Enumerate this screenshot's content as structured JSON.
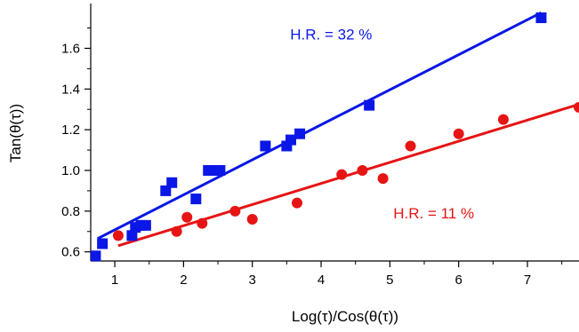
{
  "chart_data": {
    "type": "scatter",
    "title": "",
    "xlabel": "Log(τ)/Cos(θ(τ))",
    "ylabel": "Tan(θ(τ))",
    "xlim": [
      0.65,
      7.75
    ],
    "ylim": [
      0.555,
      1.82
    ],
    "x_ticks": [
      1,
      2,
      3,
      4,
      5,
      6,
      7
    ],
    "y_ticks": [
      0.6,
      0.8,
      1.0,
      1.2,
      1.4,
      1.6
    ],
    "y_tick_labels": [
      "0.6",
      "0.8",
      "1.0",
      "1.2",
      "1.4",
      "1.6"
    ],
    "grid": false,
    "series": [
      {
        "color": "#0a17e6",
        "marker": "square",
        "points": [
          [
            0.72,
            0.58
          ],
          [
            0.82,
            0.64
          ],
          [
            1.25,
            0.68
          ],
          [
            1.3,
            0.72
          ],
          [
            1.38,
            0.73
          ],
          [
            1.45,
            0.73
          ],
          [
            1.74,
            0.9
          ],
          [
            1.83,
            0.94
          ],
          [
            2.18,
            0.86
          ],
          [
            2.36,
            1.0
          ],
          [
            2.45,
            1.0
          ],
          [
            2.53,
            1.0
          ],
          [
            3.19,
            1.12
          ],
          [
            3.5,
            1.12
          ],
          [
            3.56,
            1.15
          ],
          [
            3.69,
            1.18
          ],
          [
            4.7,
            1.32
          ],
          [
            7.2,
            1.75
          ]
        ],
        "fit": [
          [
            0.75,
            0.665
          ],
          [
            7.2,
            1.775
          ]
        ]
      },
      {
        "color": "#e61414",
        "marker": "circle",
        "points": [
          [
            1.05,
            0.68
          ],
          [
            1.9,
            0.7
          ],
          [
            2.05,
            0.77
          ],
          [
            2.27,
            0.74
          ],
          [
            2.75,
            0.8
          ],
          [
            3.0,
            0.76
          ],
          [
            3.65,
            0.84
          ],
          [
            4.3,
            0.98
          ],
          [
            4.6,
            1.0
          ],
          [
            4.9,
            0.96
          ],
          [
            5.3,
            1.12
          ],
          [
            6.0,
            1.18
          ],
          [
            6.65,
            1.25
          ],
          [
            7.75,
            1.31
          ]
        ],
        "fit": [
          [
            1.05,
            0.63
          ],
          [
            7.75,
            1.325
          ]
        ]
      }
    ],
    "annotations": [
      {
        "text": "H.R. = 32 %",
        "x": 3.55,
        "y": 1.67,
        "color": "#0a17e6"
      },
      {
        "text": "H.R. = 11 %",
        "x": 5.05,
        "y": 0.79,
        "color": "#e61414"
      }
    ]
  }
}
